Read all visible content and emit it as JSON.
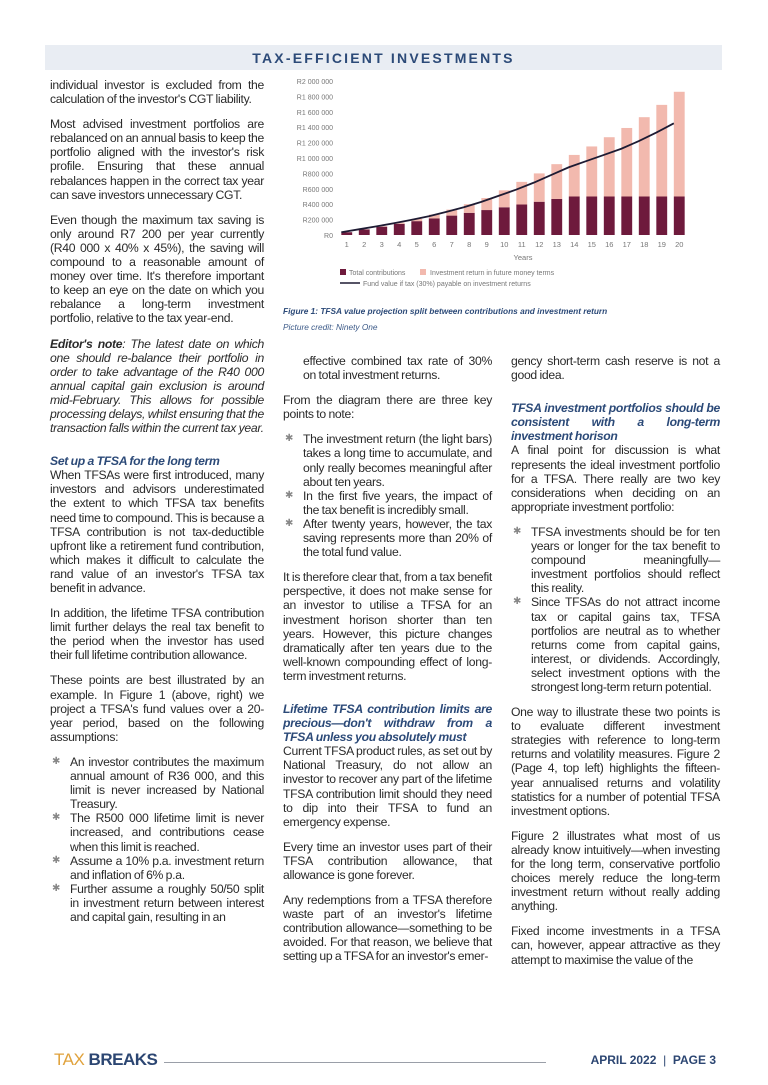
{
  "header": {
    "section_title": "TAX-EFFICIENT INVESTMENTS"
  },
  "col1": {
    "p1": "individual investor is excluded from the calculation of the investor's CGT liability.",
    "p2": "Most advised investment portfolios are rebalanced on an annual basis to keep the portfolio aligned with the investor's risk profile.  Ensuring that these annual rebalances happen in the correct tax year can save investors unnecessary CGT.",
    "p3": "Even though the maximum tax saving is only around R7 200 per year currently (R40 000 x 40% x 45%), the saving will compound to a reasonable amount of money over time.  It's therefore important to keep an eye on the date on which you rebalance a long-term investment portfolio, relative to the tax year-end.",
    "editor_label": "Editor's note",
    "editor_note": ": The latest date on which one should re-balance their portfolio in order to take advantage of the R40 000 annual capital gain exclusion is around mid-February.  This allows for possible processing delays, whilst ensuring that the transaction falls within the current tax year.",
    "heading1": "Set up a TFSA for the long term",
    "p4": "When TFSAs were first introduced, many investors and advisors underestimated the extent to which TFSA tax benefits need time to compound.  This is because a TFSA contribution is not tax-deductible upfront like a retirement fund contribution, which makes it difficult to calculate the rand value of an investor's TFSA tax benefit in advance.",
    "p5": "In addition, the lifetime TFSA contribution limit further delays the real tax benefit to the period when the investor has used their full lifetime contribution allowance.",
    "p6": "These points are best illustrated by an example.  In Figure 1 (above, right) we project a TFSA's fund values over a 20-year period, based on the following assumptions:",
    "bullets": [
      "An investor contributes the maximum annual amount of R36 000, and this limit is never increased by National Treasury.",
      "The R500 000 lifetime limit is never increased, and contributions cease when this limit is reached.",
      "Assume a 10% p.a. investment return and inflation of 6% p.a.",
      "Further assume a roughly 50/50 split in investment return between interest and capital gain, resulting in an"
    ]
  },
  "col2": {
    "bullet_cont": "effective combined tax rate of 30% on total investment returns.",
    "p1": "From the diagram there are three key points to note:",
    "bullets": [
      "The investment return (the light bars) takes a long time to accumulate, and only really becomes meaningful after about ten years.",
      "In the first five years, the impact of the tax benefit is incredibly small.",
      "After twenty years, however, the tax saving represents more than 20% of the total fund value."
    ],
    "p2": "It is therefore clear that, from a tax benefit perspective, it does not make sense for an investor to utilise a TFSA for an investment horison shorter than ten years.  However, this picture changes dramatically after ten years due to the well-known compounding effect of long-term investment returns.",
    "heading": "Lifetime TFSA contribution limits are precious—don't withdraw from a TFSA unless you absolutely must",
    "p3": "Current TFSA product rules, as set out by National Treasury, do not allow an investor to recover any part of the lifetime TFSA contribution limit should they need to dip into their TFSA to fund an emergency expense.",
    "p4": "Every time an investor uses part of their TFSA contribution allowance, that allowance is gone forever.",
    "p5": "Any redemptions from a TFSA therefore waste part of an investor's lifetime contribution allowance—something to be avoided.  For that reason, we believe that setting up a TFSA for an investor's emer-"
  },
  "col3": {
    "p0": "gency short-term cash reserve is not a good idea.",
    "heading": "TFSA investment portfolios should be consistent with a long-term investment horison",
    "p1": "A final point for discussion is what represents the ideal investment portfolio for a TFSA. There really are two key considerations when deciding on an appropriate investment portfolio:",
    "bullets": [
      "TFSA investments should be for ten years or longer for the tax benefit to compound meaningfully—investment portfolios should reflect this reality.",
      "Since TFSAs do not attract income tax or capital gains tax, TFSA portfolios are neutral as to whether returns come from capital gains, interest, or dividends.  Accordingly, select investment options with the strongest long-term return potential."
    ],
    "p2": "One way to illustrate these two points is to evaluate different investment strategies with reference to long-term returns and volatility measures.  Figure 2 (Page 4, top left) highlights the fifteen-year annualised returns and volatility statistics for a number of potential TFSA investment options.",
    "p3": "Figure 2 illustrates what most of us already know intuitively—when investing for the long term, conservative portfolio choices merely reduce the long-term investment return without really adding anything.",
    "p4": "Fixed income investments in a TFSA can, however, appear attractive as they attempt to maximise the value of the"
  },
  "figure": {
    "caption": "Figure 1: TFSA value projection split between contributions and investment return",
    "credit": "Picture credit: Ninety One"
  },
  "chart_data": {
    "type": "bar",
    "stacked": true,
    "xlabel": "Years",
    "ylabel": "",
    "categories": [
      "1",
      "2",
      "3",
      "4",
      "5",
      "6",
      "7",
      "8",
      "9",
      "10",
      "11",
      "12",
      "13",
      "14",
      "15",
      "16",
      "17",
      "18",
      "19",
      "20"
    ],
    "ylim": [
      0,
      2000000
    ],
    "yticks": [
      "R0",
      "R200 000",
      "R400 000",
      "R600 000",
      "R800 000",
      "R1 000 000",
      "R1 200 000",
      "R1 400 000",
      "R1 600 000",
      "R1 800 000",
      "R2 000 000"
    ],
    "series": [
      {
        "name": "Total contributions",
        "kind": "bar",
        "color": "#6e1a3c",
        "values": [
          36000,
          72000,
          108000,
          144000,
          180000,
          216000,
          252000,
          288000,
          324000,
          360000,
          396000,
          432000,
          468000,
          500000,
          500000,
          500000,
          500000,
          500000,
          500000,
          500000
        ]
      },
      {
        "name": "Investment return in future money terms",
        "kind": "bar",
        "color": "#f2b9ae",
        "values": [
          0,
          3000,
          7000,
          16000,
          30000,
          49000,
          78000,
          112000,
          156000,
          220000,
          294000,
          368000,
          452000,
          540000,
          650000,
          770000,
          890000,
          1030000,
          1190000,
          1360000
        ]
      },
      {
        "name": "Fund value if tax (30%) payable on investment returns",
        "kind": "line",
        "color": "#1e1b33",
        "values": [
          36000,
          74000,
          112000,
          152000,
          196000,
          244000,
          300000,
          360000,
          430000,
          510000,
          590000,
          680000,
          780000,
          880000,
          960000,
          1040000,
          1120000,
          1220000,
          1330000,
          1450000
        ]
      }
    ],
    "grid": false,
    "legend": "bottom"
  },
  "footer": {
    "brand_a": "TAX",
    "brand_b": "BREAKS",
    "issue": "APRIL 2022",
    "sep": "|",
    "page": "PAGE 3"
  }
}
